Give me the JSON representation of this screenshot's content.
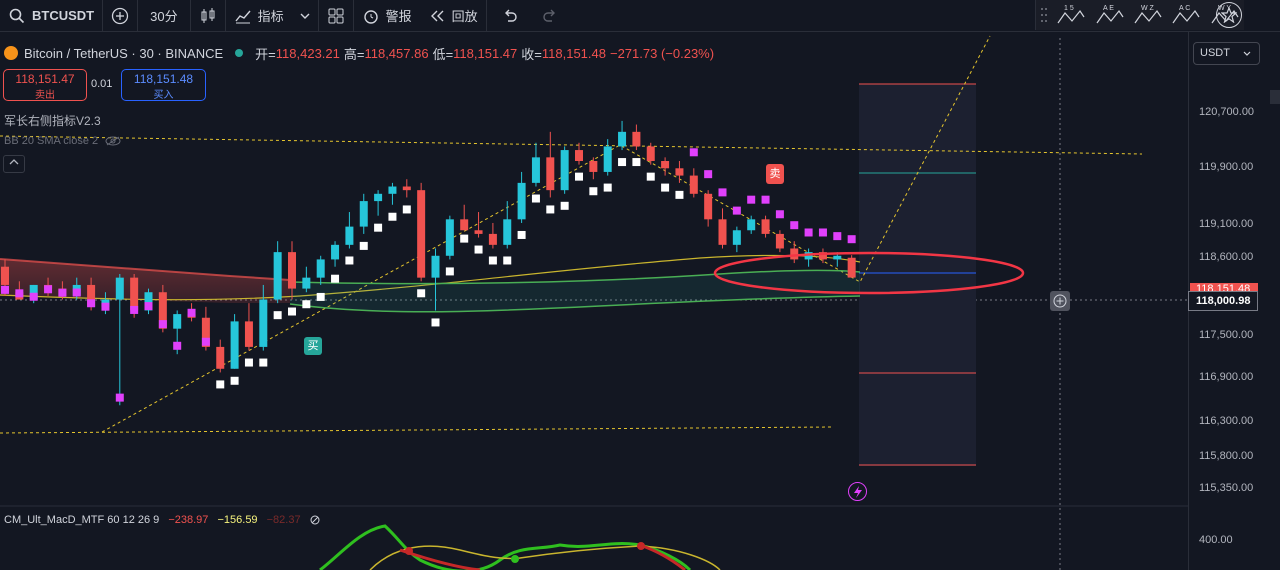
{
  "toolbar": {
    "symbol": "BTCUSDT",
    "interval": "30分",
    "indicators_label": "指标",
    "alert_label": "警报",
    "replay_label": "回放",
    "drawing_tools": [
      {
        "top": "1 5",
        "icon": "zigzag-icon"
      },
      {
        "top": "A E",
        "icon": "zigzag-icon"
      },
      {
        "top": "W Z",
        "icon": "zigzag-icon"
      },
      {
        "top": "A C",
        "icon": "zigzag-icon"
      },
      {
        "top": "W Y",
        "icon": "zigzag-icon"
      }
    ]
  },
  "legend": {
    "title": "Bitcoin / TetherUS · 30 · BINANCE",
    "open_label": "开=",
    "open": "118,423.21",
    "high_label": "高=",
    "high": "118,457.86",
    "low_label": "低=",
    "low": "118,151.47",
    "close_label": "收=",
    "close": "118,151.48",
    "change": "−271.73 (−0.23%)"
  },
  "trade": {
    "sell_price": "118,151.47",
    "sell_label": "卖出",
    "spread": "0.01",
    "buy_price": "118,151.48",
    "buy_label": "买入"
  },
  "indicators": {
    "ind1": "军长右侧指标V2.3",
    "ind2": "BB 20 SMA close 2",
    "macd_name": "CM_Ult_MacD_MTF 60 12 26 9",
    "macd_v1": "−238.97",
    "macd_v2": "−156.59",
    "macd_v3": "−82.37"
  },
  "axis": {
    "currency": "USDT",
    "labels": [
      "120,700.00",
      "119,900.00",
      "119,100.00",
      "118,600.00",
      "117,500.00",
      "116,900.00",
      "116,300.00",
      "115,800.00",
      "115,350.00",
      "400.00"
    ],
    "current_price_tag": "118,151.48",
    "crosshair_price": "118,000.98"
  },
  "signals": {
    "sell": "卖",
    "buy": "买"
  },
  "colors": {
    "up": "#26c6da",
    "down": "#f0524f",
    "magenta": "#e040fb",
    "background": "#131722"
  },
  "chart_data": {
    "type": "candlestick",
    "candles": [
      [
        0,
        118300,
        118400,
        117900,
        118050
      ],
      [
        1,
        117950,
        118100,
        117850,
        117850
      ],
      [
        2,
        117850,
        118050,
        117800,
        118050
      ],
      [
        3,
        118050,
        118150,
        117900,
        118000
      ],
      [
        4,
        118000,
        118100,
        117850,
        117900
      ],
      [
        5,
        117900,
        118150,
        117850,
        118050
      ],
      [
        6,
        118050,
        118150,
        117700,
        117750
      ],
      [
        7,
        117750,
        117950,
        117650,
        117850
      ],
      [
        8,
        117850,
        118200,
        116400,
        118150
      ],
      [
        9,
        118150,
        118200,
        117600,
        117700
      ],
      [
        10,
        117700,
        118000,
        117650,
        117950
      ],
      [
        11,
        117950,
        118050,
        117400,
        117450
      ],
      [
        12,
        117450,
        117700,
        117100,
        117650
      ],
      [
        13,
        117650,
        117800,
        117550,
        117600
      ],
      [
        14,
        117600,
        117750,
        117150,
        117200
      ],
      [
        15,
        117200,
        117300,
        116850,
        116900
      ],
      [
        16,
        116900,
        117650,
        116900,
        117550
      ],
      [
        17,
        117550,
        117800,
        117150,
        117200
      ],
      [
        18,
        117200,
        118050,
        117150,
        117850
      ],
      [
        19,
        117850,
        118650,
        117800,
        118500
      ],
      [
        20,
        118500,
        118650,
        117850,
        118000
      ],
      [
        21,
        118000,
        118300,
        117950,
        118150
      ],
      [
        22,
        118150,
        118450,
        118050,
        118400
      ],
      [
        23,
        118400,
        118650,
        118300,
        118600
      ],
      [
        24,
        118600,
        119050,
        118550,
        118850
      ],
      [
        25,
        118850,
        119300,
        118750,
        119200
      ],
      [
        26,
        119200,
        119350,
        119000,
        119300
      ],
      [
        27,
        119300,
        119450,
        119150,
        119400
      ],
      [
        28,
        119400,
        119500,
        119250,
        119350
      ],
      [
        29,
        119350,
        119450,
        118100,
        118150
      ],
      [
        30,
        118150,
        118550,
        117700,
        118450
      ],
      [
        31,
        118450,
        119000,
        118400,
        118950
      ],
      [
        32,
        118950,
        119150,
        118850,
        118800
      ],
      [
        33,
        118800,
        119050,
        118700,
        118750
      ],
      [
        34,
        118750,
        118900,
        118550,
        118600
      ],
      [
        35,
        118600,
        119200,
        118550,
        118950
      ],
      [
        36,
        118950,
        119600,
        118900,
        119450
      ],
      [
        37,
        119450,
        120000,
        119400,
        119800
      ],
      [
        38,
        119800,
        120150,
        119250,
        119350
      ],
      [
        39,
        119350,
        119950,
        119300,
        119900
      ],
      [
        40,
        119900,
        120000,
        119700,
        119750
      ],
      [
        41,
        119750,
        119800,
        119500,
        119600
      ],
      [
        42,
        119600,
        120050,
        119550,
        119950
      ],
      [
        43,
        119950,
        120300,
        119900,
        120150
      ],
      [
        44,
        120150,
        120250,
        119900,
        119950
      ],
      [
        45,
        119950,
        120000,
        119700,
        119750
      ],
      [
        46,
        119750,
        119800,
        119550,
        119650
      ],
      [
        47,
        119650,
        119750,
        119450,
        119550
      ],
      [
        48,
        119550,
        119650,
        119250,
        119300
      ],
      [
        49,
        119300,
        119350,
        118850,
        118950
      ],
      [
        50,
        118950,
        119100,
        118550,
        118600
      ],
      [
        51,
        118600,
        118850,
        118500,
        118800
      ],
      [
        52,
        118800,
        119000,
        118750,
        118950
      ],
      [
        53,
        118950,
        119000,
        118700,
        118750
      ],
      [
        54,
        118750,
        118800,
        118500,
        118550
      ],
      [
        55,
        118550,
        118650,
        118350,
        118400
      ],
      [
        56,
        118400,
        118550,
        118300,
        118500
      ],
      [
        57,
        118500,
        118550,
        118350,
        118400
      ],
      [
        58,
        118400,
        118500,
        118300,
        118450
      ],
      [
        59,
        118423,
        118458,
        118151,
        118151
      ]
    ],
    "ylim": [
      115100,
      121300
    ]
  }
}
